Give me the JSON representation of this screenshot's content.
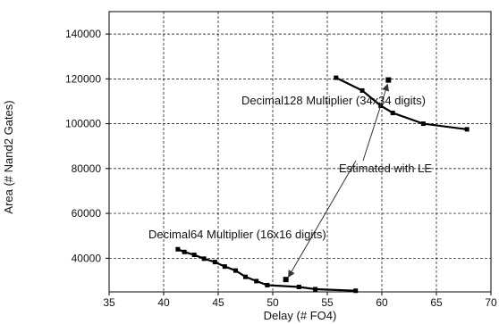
{
  "chart_data": {
    "type": "line",
    "xlabel": "Delay (# FO4)",
    "ylabel": "Area (# Nand2 Gates)",
    "xlim": [
      35,
      70
    ],
    "ylim": [
      25000,
      150000
    ],
    "xticks": [
      35,
      40,
      45,
      50,
      55,
      60,
      65,
      70
    ],
    "yticks": [
      40000,
      60000,
      80000,
      100000,
      120000,
      140000
    ],
    "grid": true,
    "series": [
      {
        "name": "Decimal64 Multiplier (16x16 digits)",
        "x": [
          41.3,
          41.9,
          42.8,
          43.7,
          44.7,
          45.6,
          46.6,
          47.5,
          48.5,
          49.5,
          52.4,
          53.9,
          57.6
        ],
        "y": [
          44000,
          42800,
          41500,
          39800,
          38300,
          36300,
          34500,
          31700,
          29800,
          28000,
          27200,
          26200,
          25500
        ],
        "marker": "square"
      },
      {
        "name": "Decimal128 Multiplier (34x34 digits)",
        "x": [
          55.8,
          58.2,
          59.9,
          61.0,
          63.8,
          67.8
        ],
        "y": [
          120500,
          114800,
          108000,
          104800,
          100000,
          97500
        ],
        "marker": "square"
      }
    ],
    "estimated_points": [
      {
        "x": 51.2,
        "y": 30500
      },
      {
        "x": 60.6,
        "y": 119500
      }
    ],
    "annotations": {
      "decimal128": "Decimal128 Multiplier (34x34 digits)",
      "decimal64": "Decimal64 Multiplier (16x16 digits)",
      "estimated": "Estimated with LE"
    }
  }
}
